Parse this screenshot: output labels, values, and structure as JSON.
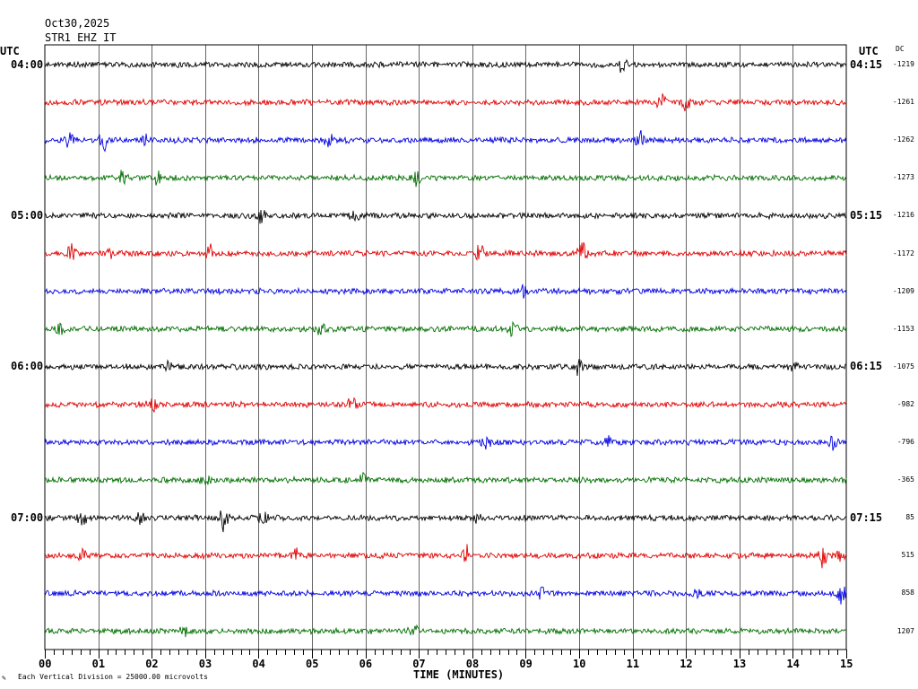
{
  "header": {
    "date": "Oct30,2025",
    "station": "STR1 EHZ IT"
  },
  "chart_data": {
    "type": "line",
    "subtype": "helicorder",
    "title": "STR1 EHZ IT",
    "date": "Oct30,2025",
    "xlabel": "TIME (MINUTES)",
    "xlim": [
      0,
      15
    ],
    "x_ticks": [
      "00",
      "01",
      "02",
      "03",
      "04",
      "05",
      "06",
      "07",
      "08",
      "09",
      "10",
      "11",
      "12",
      "13",
      "14",
      "15"
    ],
    "left_axis_label": "UTC",
    "right_axis_label": "UTC",
    "right_column_label": "DC",
    "left_time_labels": [
      {
        "row": 0,
        "label": "04:00"
      },
      {
        "row": 4,
        "label": "05:00"
      },
      {
        "row": 8,
        "label": "06:00"
      },
      {
        "row": 12,
        "label": "07:00"
      }
    ],
    "right_time_labels": [
      {
        "row": 0,
        "label": "04:15"
      },
      {
        "row": 4,
        "label": "05:15"
      },
      {
        "row": 8,
        "label": "06:15"
      },
      {
        "row": 12,
        "label": "07:15"
      }
    ],
    "trace_colors": [
      "#000000",
      "#e00000",
      "#0000e0",
      "#006e00"
    ],
    "rows": [
      {
        "dc": "-1219",
        "events": [
          {
            "min": 10.8,
            "amp": 0.6
          }
        ]
      },
      {
        "dc": "-1261",
        "events": [
          {
            "min": 11.55,
            "amp": 0.8
          },
          {
            "min": 12.0,
            "amp": 0.6
          }
        ]
      },
      {
        "dc": "-1262",
        "events": [
          {
            "min": 0.45,
            "amp": 0.7
          },
          {
            "min": 1.1,
            "amp": 0.9
          },
          {
            "min": 1.9,
            "amp": 0.5
          },
          {
            "min": 5.3,
            "amp": 0.7
          },
          {
            "min": 11.15,
            "amp": 0.7
          }
        ]
      },
      {
        "dc": "-1273",
        "events": [
          {
            "min": 1.45,
            "amp": 0.6
          },
          {
            "min": 2.1,
            "amp": 0.5
          },
          {
            "min": 6.95,
            "amp": 0.6
          }
        ]
      },
      {
        "dc": "-1216",
        "events": [
          {
            "min": 4.05,
            "amp": 0.6
          },
          {
            "min": 5.8,
            "amp": 0.4
          }
        ]
      },
      {
        "dc": "-1172",
        "events": [
          {
            "min": 0.5,
            "amp": 0.7
          },
          {
            "min": 1.2,
            "amp": 0.4
          },
          {
            "min": 3.1,
            "amp": 0.7
          },
          {
            "min": 8.15,
            "amp": 0.9
          },
          {
            "min": 10.05,
            "amp": 0.9
          }
        ]
      },
      {
        "dc": "-1209",
        "events": [
          {
            "min": 8.95,
            "amp": 0.4
          }
        ]
      },
      {
        "dc": "-1153",
        "events": [
          {
            "min": 0.3,
            "amp": 0.4
          },
          {
            "min": 5.15,
            "amp": 0.6
          },
          {
            "min": 8.75,
            "amp": 0.6
          }
        ]
      },
      {
        "dc": "-1075",
        "events": [
          {
            "min": 2.3,
            "amp": 0.5
          },
          {
            "min": 10.0,
            "amp": 0.8
          },
          {
            "min": 14.0,
            "amp": 0.4
          }
        ]
      },
      {
        "dc": "-982",
        "events": [
          {
            "min": 2.0,
            "amp": 0.8
          },
          {
            "min": 5.75,
            "amp": 0.6
          }
        ]
      },
      {
        "dc": "-796",
        "events": [
          {
            "min": 8.25,
            "amp": 0.6
          },
          {
            "min": 10.5,
            "amp": 0.7
          },
          {
            "min": 14.75,
            "amp": 0.6
          }
        ]
      },
      {
        "dc": "-365",
        "events": [
          {
            "min": 3.0,
            "amp": 0.5
          },
          {
            "min": 5.95,
            "amp": 0.5
          }
        ]
      },
      {
        "dc": "85",
        "events": [
          {
            "min": 0.7,
            "amp": 0.6
          },
          {
            "min": 1.8,
            "amp": 0.4
          },
          {
            "min": 3.35,
            "amp": 1.0
          },
          {
            "min": 4.1,
            "amp": 0.5
          },
          {
            "min": 8.1,
            "amp": 0.4
          }
        ]
      },
      {
        "dc": "515",
        "events": [
          {
            "min": 0.7,
            "amp": 0.5
          },
          {
            "min": 4.7,
            "amp": 0.5
          },
          {
            "min": 7.9,
            "amp": 0.7
          },
          {
            "min": 14.55,
            "amp": 0.9
          },
          {
            "min": 14.9,
            "amp": 0.5
          }
        ]
      },
      {
        "dc": "858",
        "events": [
          {
            "min": 9.3,
            "amp": 0.5
          },
          {
            "min": 12.15,
            "amp": 0.5
          },
          {
            "min": 14.9,
            "amp": 0.8
          }
        ]
      },
      {
        "dc": "1207",
        "events": [
          {
            "min": 2.6,
            "amp": 0.4
          },
          {
            "min": 6.9,
            "amp": 0.6
          }
        ]
      }
    ],
    "footnote": "Each Vertical Division = 25000.00 microvolts",
    "grid": true
  }
}
